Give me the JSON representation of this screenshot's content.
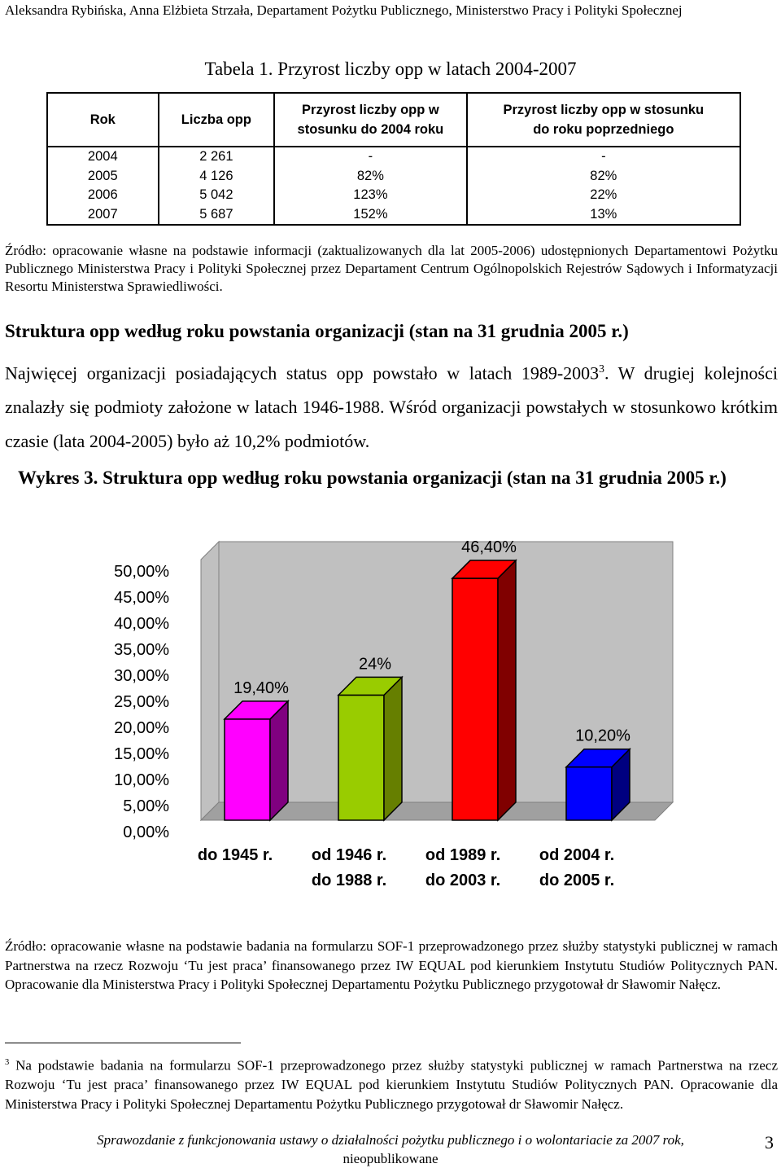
{
  "header": {
    "author_line": "Aleksandra Rybińska, Anna Elżbieta Strzała, Departament Pożytku Publicznego, Ministerstwo Pracy i Polityki Społecznej"
  },
  "table": {
    "title": "Tabela 1. Przyrost liczby opp w latach 2004-2007",
    "headers": [
      "Rok",
      "Liczba opp",
      "Przyrost liczby opp w stosunku do 2004 roku",
      "Przyrost liczby opp w stosunku do roku poprzedniego"
    ],
    "rows": [
      [
        "2004",
        "2 261",
        "-",
        "-"
      ],
      [
        "2005",
        "4 126",
        "82%",
        "82%"
      ],
      [
        "2006",
        "5 042",
        "123%",
        "22%"
      ],
      [
        "2007",
        "5 687",
        "152%",
        "13%"
      ]
    ],
    "source": "Źródło: opracowanie własne na podstawie informacji (zaktualizowanych dla lat 2005-2006) udostępnionych Departamentowi Pożytku Publicznego Ministerstwa Pracy i Polityki Społecznej przez Departament Centrum Ogólnopolskich Rejestrów Sądowych i Informatyzacji Resortu Ministerstwa Sprawiedliwości."
  },
  "section": {
    "heading": "Struktura opp według roku powstania organizacji (stan na 31 grudnia 2005 r.)",
    "paragraph_part1": "Najwięcej organizacji posiadających status opp powstało w latach 1989-2003",
    "footnote_ref": "3",
    "paragraph_part2": ". W drugiej kolejności znalazły się podmioty założone w latach 1946-1988. Wśród organizacji powstałych w stosunkowo krótkim czasie (lata 2004-2005) było aż 10,2% podmiotów."
  },
  "chart_heading": "Wykres 3. Struktura opp według roku powstania organizacji (stan na 31 grudnia 2005 r.)",
  "chart_data": {
    "type": "bar",
    "title": "",
    "xlabel": "",
    "ylabel": "",
    "ylim": [
      0,
      50
    ],
    "categories": [
      "do 1945 r.",
      "od 1946 r. do 1988 r.",
      "od 1989 r. do 2003 r.",
      "od 2004 r. do 2005 r."
    ],
    "category_lines": [
      [
        "do 1945 r."
      ],
      [
        "od 1946 r.",
        "do 1988 r."
      ],
      [
        "od 1989 r.",
        "do 2003 r."
      ],
      [
        "od 2004 r.",
        "do 2005 r."
      ]
    ],
    "values": [
      19.4,
      24,
      46.4,
      10.2
    ],
    "data_labels": [
      "19,40%",
      "24%",
      "46,40%",
      "10,20%"
    ],
    "y_ticks": [
      "0,00%",
      "5,00%",
      "10,00%",
      "15,00%",
      "20,00%",
      "25,00%",
      "30,00%",
      "35,00%",
      "40,00%",
      "45,00%",
      "50,00%"
    ],
    "bar_colors": [
      "#ff00ff",
      "#99cc00",
      "#ff0000",
      "#0000ff"
    ],
    "bar_side_colors": [
      "#800080",
      "#667f00",
      "#800000",
      "#000080"
    ],
    "grid": false,
    "legend": "none"
  },
  "source2": "Źródło: opracowanie własne na podstawie badania na formularzu SOF-1 przeprowadzonego przez służby statystyki publicznej w ramach Partnerstwa na rzecz Rozwoju ‘Tu jest praca’ finansowanego przez IW EQUAL pod kierunkiem Instytutu Studiów Politycznych PAN. Opracowanie dla Ministerstwa Pracy i Polityki Społecznej Departamentu Pożytku Publicznego przygotował dr Sławomir Nałęcz.",
  "footnote": {
    "number": "3",
    "text": " Na podstawie badania na formularzu SOF-1 przeprowadzonego przez służby statystyki publicznej w ramach Partnerstwa na rzecz Rozwoju ‘Tu jest praca’ finansowanego przez IW EQUAL pod kierunkiem Instytutu Studiów Politycznych PAN. Opracowanie dla Ministerstwa Pracy i Polityki Społecznej Departamentu Pożytku Publicznego przygotował dr Sławomir Nałęcz."
  },
  "footer": {
    "line1": "Sprawozdanie z funkcjonowania ustawy o działalności pożytku publicznego i o wolontariacie za 2007 rok,",
    "line2": "nieopublikowane",
    "page_number": "3"
  }
}
